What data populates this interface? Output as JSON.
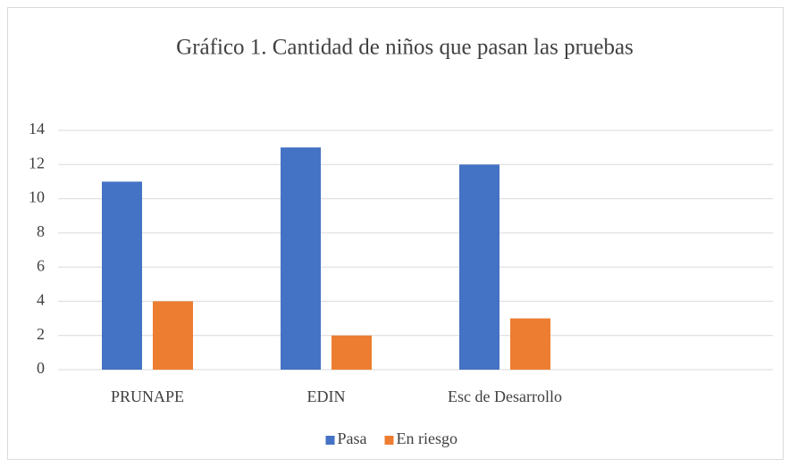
{
  "chart_data": {
    "type": "bar",
    "title": "Gráfico 1. Cantidad de niños que pasan las pruebas",
    "categories": [
      "PRUNAPE",
      "EDIN",
      "Esc de Desarrollo",
      null
    ],
    "series": [
      {
        "name": "Pasa",
        "color": "#4472c4",
        "values": [
          11,
          13,
          12,
          null
        ]
      },
      {
        "name": "En riesgo",
        "color": "#ed7d31",
        "values": [
          4,
          2,
          3,
          null
        ]
      }
    ],
    "ylim": [
      0,
      14
    ],
    "yticks": [
      0,
      2,
      4,
      6,
      8,
      10,
      12,
      14
    ],
    "grid": true,
    "legend": "bottom"
  }
}
